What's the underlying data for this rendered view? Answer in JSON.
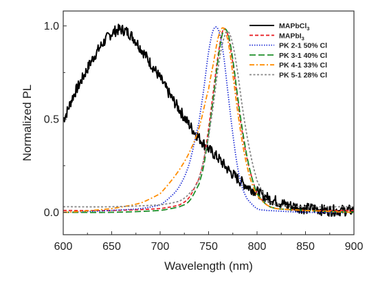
{
  "chart_data": {
    "type": "line",
    "xlabel": "Wavelength (nm)",
    "ylabel": "Normalized PL",
    "xlim": [
      600,
      900
    ],
    "ylim": [
      -0.12,
      1.08
    ],
    "xticks": [
      600,
      650,
      700,
      750,
      800,
      850,
      900
    ],
    "yticks": [
      0.0,
      0.5,
      1.0
    ],
    "ytick_labels": [
      "0.0",
      "0.5",
      "1.0"
    ],
    "legend_position": "top-right",
    "grid": false,
    "series": [
      {
        "name": "MAPbCl",
        "name_sub": "3",
        "color": "#000000",
        "style": "solid",
        "x": [
          600,
          610,
          620,
          630,
          640,
          650,
          660,
          670,
          680,
          690,
          700,
          710,
          720,
          730,
          740,
          750,
          760,
          770,
          780,
          790,
          800,
          810,
          820,
          830,
          840,
          850,
          860,
          870,
          880,
          890,
          900
        ],
        "y": [
          0.5,
          0.62,
          0.72,
          0.82,
          0.9,
          0.96,
          0.98,
          0.95,
          0.88,
          0.8,
          0.72,
          0.63,
          0.55,
          0.47,
          0.4,
          0.34,
          0.29,
          0.23,
          0.18,
          0.14,
          0.11,
          0.08,
          0.06,
          0.04,
          0.03,
          0.02,
          0.02,
          0.01,
          0.01,
          0.01,
          0.01
        ]
      },
      {
        "name": "MAPbI",
        "name_sub": "3",
        "color": "#e8242a",
        "style": "dashed",
        "x": [
          600,
          650,
          700,
          720,
          730,
          740,
          745,
          750,
          755,
          760,
          765,
          770,
          775,
          780,
          785,
          790,
          795,
          800,
          810,
          820,
          850,
          900
        ],
        "y": [
          0.01,
          0.01,
          0.02,
          0.04,
          0.08,
          0.18,
          0.28,
          0.45,
          0.65,
          0.85,
          0.98,
          0.95,
          0.8,
          0.6,
          0.42,
          0.28,
          0.18,
          0.1,
          0.04,
          0.02,
          0.01,
          0.01
        ]
      },
      {
        "name": "PK 2-1 50% Cl",
        "color": "#1f2fd6",
        "style": "dotted",
        "x": [
          600,
          650,
          680,
          700,
          710,
          720,
          730,
          740,
          745,
          750,
          755,
          760,
          765,
          770,
          775,
          780,
          785,
          790,
          800,
          810,
          850,
          900
        ],
        "y": [
          0.0,
          0.01,
          0.02,
          0.04,
          0.08,
          0.14,
          0.26,
          0.48,
          0.66,
          0.86,
          0.98,
          0.98,
          0.86,
          0.64,
          0.42,
          0.24,
          0.13,
          0.07,
          0.02,
          0.01,
          0.0,
          0.0
        ]
      },
      {
        "name": "PK 3-1 40% Cl",
        "color": "#1f8f2a",
        "style": "longdash",
        "x": [
          600,
          650,
          700,
          720,
          730,
          740,
          745,
          750,
          755,
          760,
          765,
          770,
          775,
          780,
          785,
          790,
          795,
          800,
          810,
          820,
          850,
          900
        ],
        "y": [
          0.0,
          0.0,
          0.01,
          0.03,
          0.06,
          0.15,
          0.25,
          0.42,
          0.62,
          0.83,
          0.97,
          0.96,
          0.82,
          0.62,
          0.44,
          0.29,
          0.18,
          0.1,
          0.04,
          0.02,
          0.01,
          0.0
        ]
      },
      {
        "name": "PK 4-1 33% Cl",
        "color": "#ff8c00",
        "style": "dashdot",
        "x": [
          600,
          650,
          680,
          700,
          710,
          720,
          730,
          740,
          750,
          755,
          760,
          765,
          770,
          775,
          780,
          785,
          790,
          795,
          800,
          810,
          820,
          850,
          900
        ],
        "y": [
          0.0,
          0.02,
          0.05,
          0.1,
          0.16,
          0.23,
          0.32,
          0.45,
          0.66,
          0.8,
          0.94,
          0.99,
          0.92,
          0.74,
          0.54,
          0.37,
          0.24,
          0.15,
          0.09,
          0.04,
          0.02,
          0.01,
          0.0
        ]
      },
      {
        "name": "PK 5-1 28% Cl",
        "color": "#888888",
        "style": "shortdash",
        "x": [
          600,
          650,
          700,
          720,
          730,
          740,
          750,
          755,
          760,
          765,
          770,
          775,
          780,
          785,
          790,
          795,
          800,
          810,
          820,
          850,
          900
        ],
        "y": [
          0.03,
          0.03,
          0.04,
          0.06,
          0.1,
          0.18,
          0.4,
          0.58,
          0.78,
          0.92,
          0.97,
          0.9,
          0.75,
          0.56,
          0.4,
          0.27,
          0.17,
          0.07,
          0.04,
          0.03,
          0.03
        ]
      }
    ]
  }
}
